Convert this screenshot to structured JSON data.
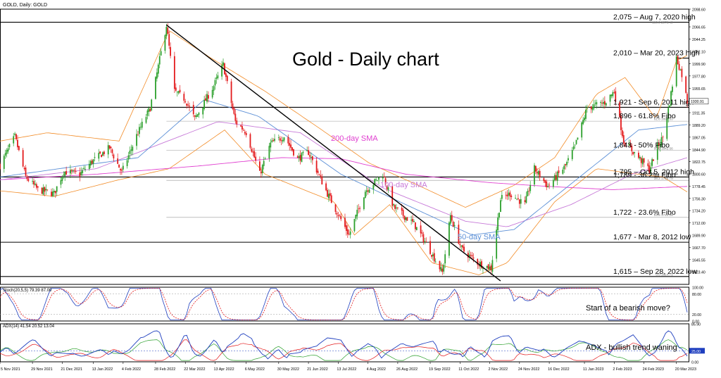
{
  "header": {
    "symbol_label": "GOLD, Daily: GOLD"
  },
  "chart_title": "Gold - Daily chart",
  "colors": {
    "up_candle": "#2ca02c",
    "down_candle": "#e31a1c",
    "bollinger": "#f28c28",
    "sma200": "#e040d0",
    "sma100": "#c77ad8",
    "sma50": "#5b8fd6",
    "trendline": "#000000",
    "hline": "#000000",
    "fib_line": "#9a9a9a",
    "stoch_main": "#1f3fbf",
    "stoch_signal": "#e31a1c",
    "adx_main": "#1f3fbf",
    "adx_plus": "#2ca02c",
    "adx_minus": "#e31a1c"
  },
  "chart_data": {
    "type": "candlestick",
    "symbol": "GOLD",
    "timeframe": "Daily",
    "y_scale": [
      1600.75,
      2098.6
    ],
    "x_range": [
      "2021-11-05",
      "2023-03-29"
    ],
    "y_ticks": [
      2098.6,
      2066.65,
      2044.25,
      2022.1,
      1999.9,
      1977.8,
      1955.65,
      1933.5,
      1911.35,
      1889.2,
      1867.05,
      1844.9,
      1822.75,
      1800.6,
      1778.45,
      1756.3,
      1734.2,
      1712.0,
      1689.9,
      1667.7,
      1645.55,
      1623.4
    ],
    "current_price": "1930.91",
    "x_ticks": [
      "5 Nov 2021",
      "29 Nov 2021",
      "21 Dec 2021",
      "13 Jan 2022",
      "4 Feb 2022",
      "28 Feb 2022",
      "22 Mar 2022",
      "13 Apr 2022",
      "6 May 2022",
      "30 May 2022",
      "21 Jun 2022",
      "13 Jul 2022",
      "4 Aug 2022",
      "26 Aug 2022",
      "19 Sep 2022",
      "11 Oct 2022",
      "2 Nov 2022",
      "24 Nov 2022",
      "16 Dec 2022",
      "11 Jan 2023",
      "2 Feb 2023",
      "24 Feb 2023",
      "20 Mar 2023"
    ],
    "price_path": [
      [
        "2021-11-05",
        1816
      ],
      [
        "2021-11-16",
        1868
      ],
      [
        "2021-11-24",
        1795
      ],
      [
        "2021-12-03",
        1772
      ],
      [
        "2021-12-15",
        1765
      ],
      [
        "2021-12-22",
        1805
      ],
      [
        "2022-01-03",
        1800
      ],
      [
        "2022-01-12",
        1823
      ],
      [
        "2022-01-25",
        1848
      ],
      [
        "2022-02-03",
        1803
      ],
      [
        "2022-02-14",
        1870
      ],
      [
        "2022-02-24",
        1920
      ],
      [
        "2022-03-08",
        2070
      ],
      [
        "2022-03-14",
        1950
      ],
      [
        "2022-03-22",
        1935
      ],
      [
        "2022-03-29",
        1900
      ],
      [
        "2022-04-12",
        1960
      ],
      [
        "2022-04-19",
        1998
      ],
      [
        "2022-04-28",
        1895
      ],
      [
        "2022-05-06",
        1876
      ],
      [
        "2022-05-16",
        1800
      ],
      [
        "2022-05-24",
        1855
      ],
      [
        "2022-06-03",
        1869
      ],
      [
        "2022-06-13",
        1828
      ],
      [
        "2022-06-21",
        1840
      ],
      [
        "2022-07-05",
        1765
      ],
      [
        "2022-07-21",
        1690
      ],
      [
        "2022-08-02",
        1770
      ],
      [
        "2022-08-15",
        1800
      ],
      [
        "2022-08-23",
        1740
      ],
      [
        "2022-09-07",
        1710
      ],
      [
        "2022-09-16",
        1675
      ],
      [
        "2022-09-28",
        1622
      ],
      [
        "2022-10-04",
        1725
      ],
      [
        "2022-10-12",
        1665
      ],
      [
        "2022-10-24",
        1640
      ],
      [
        "2022-11-03",
        1630
      ],
      [
        "2022-11-10",
        1755
      ],
      [
        "2022-11-17",
        1765
      ],
      [
        "2022-11-28",
        1745
      ],
      [
        "2022-12-05",
        1810
      ],
      [
        "2022-12-15",
        1778
      ],
      [
        "2022-12-28",
        1815
      ],
      [
        "2023-01-04",
        1850
      ],
      [
        "2023-01-13",
        1920
      ],
      [
        "2023-01-26",
        1930
      ],
      [
        "2023-02-02",
        1950
      ],
      [
        "2023-02-09",
        1860
      ],
      [
        "2023-02-23",
        1822
      ],
      [
        "2023-02-28",
        1808
      ],
      [
        "2023-03-06",
        1850
      ],
      [
        "2023-03-10",
        1867
      ],
      [
        "2023-03-15",
        1930
      ],
      [
        "2023-03-20",
        2010
      ],
      [
        "2023-03-24",
        1980
      ],
      [
        "2023-03-28",
        1932
      ]
    ],
    "sma200_path": [
      [
        "2021-11-05",
        1790
      ],
      [
        "2022-01-15",
        1800
      ],
      [
        "2022-04-01",
        1815
      ],
      [
        "2022-06-01",
        1830
      ],
      [
        "2022-07-15",
        1828
      ],
      [
        "2022-09-01",
        1800
      ],
      [
        "2022-11-01",
        1785
      ],
      [
        "2022-12-15",
        1778
      ],
      [
        "2023-02-01",
        1772
      ],
      [
        "2023-03-28",
        1778
      ]
    ],
    "sma100_path": [
      [
        "2021-11-05",
        1790
      ],
      [
        "2022-01-15",
        1810
      ],
      [
        "2022-04-15",
        1895
      ],
      [
        "2022-06-15",
        1875
      ],
      [
        "2022-08-15",
        1775
      ],
      [
        "2022-10-15",
        1715
      ],
      [
        "2022-11-15",
        1705
      ],
      [
        "2023-01-01",
        1745
      ],
      [
        "2023-02-15",
        1800
      ],
      [
        "2023-03-28",
        1830
      ]
    ],
    "sma50_path": [
      [
        "2021-11-05",
        1795
      ],
      [
        "2022-02-15",
        1830
      ],
      [
        "2022-04-05",
        1935
      ],
      [
        "2022-05-15",
        1905
      ],
      [
        "2022-07-15",
        1800
      ],
      [
        "2022-09-01",
        1745
      ],
      [
        "2022-10-20",
        1690
      ],
      [
        "2022-11-20",
        1700
      ],
      [
        "2023-01-10",
        1800
      ],
      [
        "2023-02-20",
        1880
      ],
      [
        "2023-03-28",
        1890
      ]
    ],
    "bollinger_upper_path": [
      [
        "2021-11-05",
        1860
      ],
      [
        "2021-12-10",
        1875
      ],
      [
        "2022-02-01",
        1860
      ],
      [
        "2022-03-10",
        2060
      ],
      [
        "2022-04-10",
        2010
      ],
      [
        "2022-05-20",
        1950
      ],
      [
        "2022-07-01",
        1880
      ],
      [
        "2022-08-05",
        1820
      ],
      [
        "2022-09-10",
        1780
      ],
      [
        "2022-10-15",
        1740
      ],
      [
        "2022-11-20",
        1780
      ],
      [
        "2022-12-20",
        1830
      ],
      [
        "2023-01-20",
        1945
      ],
      [
        "2023-02-10",
        1975
      ],
      [
        "2023-03-05",
        1900
      ],
      [
        "2023-03-20",
        2005
      ],
      [
        "2023-03-28",
        2015
      ]
    ],
    "bollinger_lower_path": [
      [
        "2021-11-05",
        1770
      ],
      [
        "2021-12-15",
        1760
      ],
      [
        "2022-02-01",
        1790
      ],
      [
        "2022-03-10",
        1810
      ],
      [
        "2022-04-20",
        1880
      ],
      [
        "2022-05-20",
        1800
      ],
      [
        "2022-07-10",
        1750
      ],
      [
        "2022-07-25",
        1690
      ],
      [
        "2022-08-20",
        1745
      ],
      [
        "2022-09-20",
        1640
      ],
      [
        "2022-10-25",
        1618
      ],
      [
        "2022-11-15",
        1640
      ],
      [
        "2022-12-20",
        1750
      ],
      [
        "2023-01-20",
        1810
      ],
      [
        "2023-02-20",
        1800
      ],
      [
        "2023-03-10",
        1795
      ],
      [
        "2023-03-28",
        1768
      ]
    ],
    "trendline": [
      [
        "2022-03-08",
        2070
      ],
      [
        "2022-11-10",
        1607
      ]
    ],
    "levels": [
      {
        "value": 2075,
        "label": "2,075 – Aug 7, 2020 high",
        "style": "solid"
      },
      {
        "value": 2010,
        "label": "2,010 – Mar 20, 2023 high",
        "style": "solid",
        "from": "2023-03-20"
      },
      {
        "value": 1921,
        "label": "1,921 - Sep 6, 2011 high",
        "style": "solid"
      },
      {
        "value": 1896,
        "label": "1,896 - 61.8% Fibo",
        "style": "fib"
      },
      {
        "value": 1843,
        "label": "1,843 - 50% Fibo",
        "style": "fib"
      },
      {
        "value": 1795,
        "label": "1,795 – Oct 5, 2012 high",
        "style": "solid"
      },
      {
        "value": 1789,
        "label": "1,789 - 38.2% Fibo",
        "style": "fib"
      },
      {
        "value": 1722,
        "label": "1,722 - 23.6% Fibo",
        "style": "fib"
      },
      {
        "value": 1677,
        "label": "1,677 - Mar 8, 2012 low",
        "style": "solid"
      },
      {
        "value": 1615,
        "label": "1,615 – Sep 28, 2022 low",
        "style": "solid"
      }
    ],
    "fib_tags": [
      "100.0 2070.40",
      "61.8 1896.33",
      "50.0 1842.56",
      "38.2 1788.79",
      "23.6 1722.25",
      "0.0 1614.71"
    ],
    "annotations": {
      "sma200": "200-day SMA",
      "sma100": "100-day SMA",
      "sma50": "50-day SMA"
    },
    "stochastic": {
      "label": "Stoch(20,5,5) 79.39 87.00",
      "levels": [
        "100.00",
        "80.00",
        "20.00",
        "0.00"
      ],
      "note": "Start of a bearish move?"
    },
    "adx": {
      "label": "ADX(14) 41.54 20.52 13.04",
      "levels": [
        "85.90",
        "25.00",
        "0.00"
      ],
      "note": "ADX - bullish trend waning"
    }
  }
}
